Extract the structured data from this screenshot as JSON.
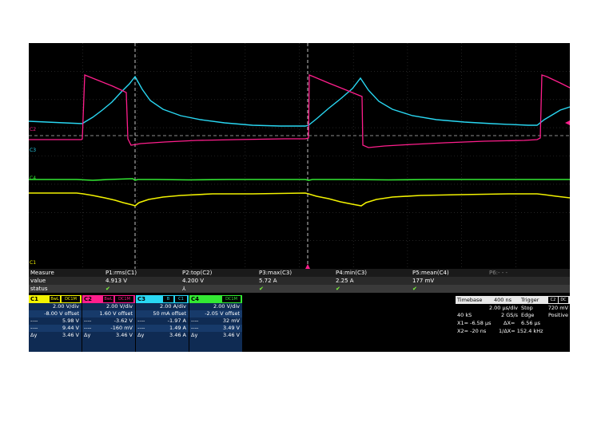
{
  "trace_labels": {
    "c2": "C2",
    "c3": "C3",
    "c4": "C4",
    "c1": "C1"
  },
  "measure": {
    "header": {
      "label": "Measure",
      "items": [
        "P1:rms(C1)",
        "P2:top(C2)",
        "P3:max(C3)",
        "P4:min(C3)",
        "P5:mean(C4)",
        "P6:- - -"
      ]
    },
    "value": {
      "label": "value",
      "items": [
        "4.913 V",
        "4.200 V",
        "5.72 A",
        "2.25 A",
        "177 mV"
      ]
    },
    "status": {
      "label": "status",
      "items": [
        "✔",
        "⅄",
        "✔",
        "✔",
        "✔"
      ]
    }
  },
  "channels": [
    {
      "name": "C1",
      "bw": "BwL",
      "coupling": "DC1M",
      "color": "#f2f200",
      "vdiv": "2.00 V/div",
      "offset": "-8.00 V offset",
      "r1k": "----",
      "r1v": "5.98 V",
      "r2k": "----",
      "r2v": "9.44 V",
      "dk": "Δy",
      "dv": "3.46 V"
    },
    {
      "name": "C2",
      "bw": "BwL",
      "coupling": "DC1M",
      "color": "#ff1e8c",
      "vdiv": "2.00 V/div",
      "offset": "1.60 V offset",
      "r1k": "----",
      "r1v": "-3.62 V",
      "r2k": "----",
      "r2v": "-160 mV",
      "dk": "Δy",
      "dv": "3.46 V"
    },
    {
      "name": "C3",
      "bw": "B",
      "coupling": "C1",
      "color": "#29d7f2",
      "vdiv": "2.00 A/div",
      "offset": "50 mA offset",
      "r1k": "----",
      "r1v": "-1.97 A",
      "r2k": "----",
      "r2v": "1.49 A",
      "dk": "Δy",
      "dv": "3.46 A"
    },
    {
      "name": "C4",
      "bw": "",
      "coupling": "DC1M",
      "color": "#33e833",
      "vdiv": "2.00 V/div",
      "offset": "-2.05 V offset",
      "r1k": "----",
      "r1v": "32 mV",
      "r2k": "----",
      "r2v": "3.49 V",
      "dk": "Δy",
      "dv": "3.46 V"
    }
  ],
  "timebase": {
    "label": "Timebase",
    "delay": "400 ns",
    "tdiv": "2.00 µs/div",
    "samples": "40 kS",
    "rate": "2 GS/s"
  },
  "trigger": {
    "label": "Trigger",
    "source": "C2",
    "coupling": "DC",
    "mode": "Stop",
    "level": "720 mV",
    "type": "Edge",
    "slope": "Positive"
  },
  "cursors": {
    "x1_label": "X1=",
    "x1": "-6.58 µs",
    "dx_label": "ΔX=",
    "dx": "6.56 µs",
    "x2_label": "X2=",
    "x2": "-20 ns",
    "inv_label": "1/ΔX=",
    "inv": "152.4 kHz"
  }
}
